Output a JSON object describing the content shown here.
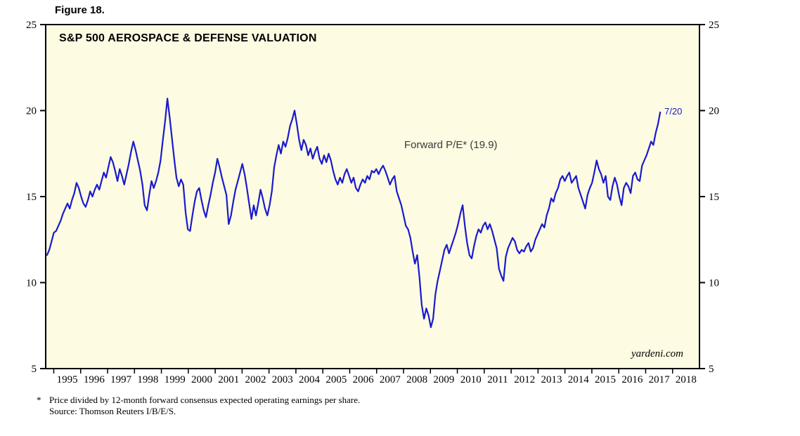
{
  "figure_label": "Figure 18.",
  "chart": {
    "title": "S&P 500 AEROSPACE & DEFENSE VALUATION",
    "annotation": "Forward P/E* (19.9)",
    "endpoint_label": "7/20",
    "brand": "yardeni.com"
  },
  "footnotes": {
    "star": "*",
    "line1": "Price divided by 12-month forward consensus expected operating earnings per share.",
    "line2": "Source: Thomson Reuters I/B/E/S."
  },
  "chart_data": {
    "type": "line",
    "title": "S&P 500 AEROSPACE & DEFENSE VALUATION",
    "series_name": "Forward P/E",
    "latest_value": 19.9,
    "latest_date_label": "7/20",
    "ylim": [
      5,
      25
    ],
    "yticks": [
      5,
      10,
      15,
      20,
      25
    ],
    "x_domain": [
      1994.7,
      2019.0
    ],
    "xticks": [
      1995,
      1996,
      1997,
      1998,
      1999,
      2000,
      2001,
      2002,
      2003,
      2004,
      2005,
      2006,
      2007,
      2008,
      2009,
      2010,
      2011,
      2012,
      2013,
      2014,
      2015,
      2016,
      2017,
      2018
    ],
    "x_start": 1994.75,
    "x_end": 2017.54,
    "frequency": "monthly",
    "values": [
      11.6,
      11.9,
      12.4,
      12.9,
      13.0,
      13.3,
      13.6,
      14.0,
      14.3,
      14.6,
      14.3,
      14.8,
      15.2,
      15.8,
      15.5,
      15.0,
      14.6,
      14.4,
      14.8,
      15.3,
      15.0,
      15.4,
      15.7,
      15.4,
      15.9,
      16.4,
      16.1,
      16.7,
      17.3,
      17.0,
      16.5,
      15.9,
      16.6,
      16.2,
      15.7,
      16.3,
      16.9,
      17.6,
      18.2,
      17.7,
      17.1,
      16.5,
      15.7,
      14.5,
      14.2,
      15.1,
      15.9,
      15.5,
      15.9,
      16.4,
      17.1,
      18.3,
      19.4,
      20.7,
      19.6,
      18.4,
      17.2,
      16.1,
      15.6,
      16.0,
      15.7,
      14.1,
      13.1,
      13.0,
      13.9,
      14.7,
      15.3,
      15.5,
      14.8,
      14.2,
      13.8,
      14.5,
      15.1,
      15.8,
      16.4,
      17.2,
      16.7,
      16.1,
      15.6,
      15.1,
      13.4,
      13.9,
      14.7,
      15.4,
      15.9,
      16.4,
      16.9,
      16.3,
      15.5,
      14.6,
      13.7,
      14.5,
      13.9,
      14.6,
      15.4,
      14.9,
      14.3,
      13.9,
      14.5,
      15.3,
      16.7,
      17.4,
      18.0,
      17.5,
      18.2,
      17.9,
      18.4,
      19.1,
      19.5,
      20.0,
      19.2,
      18.3,
      17.7,
      18.3,
      18.0,
      17.4,
      17.8,
      17.2,
      17.6,
      17.9,
      17.2,
      16.9,
      17.4,
      17.0,
      17.5,
      17.1,
      16.5,
      16.0,
      15.7,
      16.1,
      15.8,
      16.3,
      16.6,
      16.2,
      15.8,
      16.1,
      15.5,
      15.3,
      15.7,
      16.0,
      15.8,
      16.2,
      16.0,
      16.5,
      16.4,
      16.6,
      16.3,
      16.6,
      16.8,
      16.5,
      16.1,
      15.7,
      16.0,
      16.2,
      15.3,
      14.9,
      14.5,
      13.9,
      13.3,
      13.1,
      12.6,
      11.8,
      11.1,
      11.6,
      10.3,
      8.7,
      7.9,
      8.5,
      8.1,
      7.4,
      7.9,
      9.3,
      10.1,
      10.7,
      11.3,
      11.9,
      12.2,
      11.7,
      12.1,
      12.5,
      12.9,
      13.4,
      14.0,
      14.5,
      13.3,
      12.3,
      11.6,
      11.4,
      12.1,
      12.7,
      13.1,
      12.9,
      13.3,
      13.5,
      13.1,
      13.4,
      13.0,
      12.5,
      12.0,
      10.8,
      10.4,
      10.1,
      11.5,
      12.0,
      12.3,
      12.6,
      12.4,
      11.9,
      11.7,
      11.9,
      11.8,
      12.1,
      12.3,
      11.8,
      12.0,
      12.5,
      12.8,
      13.1,
      13.4,
      13.2,
      13.9,
      14.3,
      14.9,
      14.7,
      15.2,
      15.5,
      16.0,
      16.2,
      15.9,
      16.2,
      16.4,
      15.8,
      16.0,
      16.2,
      15.5,
      15.1,
      14.7,
      14.3,
      15.1,
      15.5,
      15.8,
      16.4,
      17.1,
      16.6,
      16.3,
      15.8,
      16.2,
      15.0,
      14.8,
      15.6,
      16.1,
      15.7,
      15.0,
      14.5,
      15.5,
      15.8,
      15.6,
      15.2,
      16.2,
      16.4,
      16.0,
      15.9,
      16.8,
      17.1,
      17.4,
      17.8,
      18.2,
      18.0,
      18.7,
      19.2,
      19.9
    ],
    "colors": {
      "line": "#1a1acd",
      "plot_bg": "#fdfbe2",
      "axis": "#000000",
      "annotation": "#3a3a3a"
    }
  }
}
